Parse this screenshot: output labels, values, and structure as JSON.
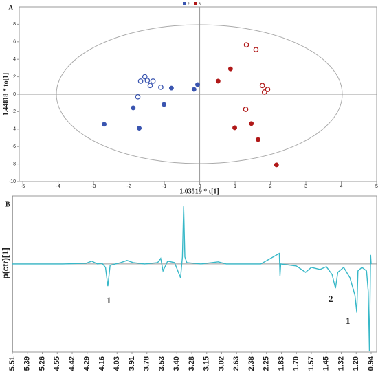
{
  "chart_data": [
    {
      "type": "scatter",
      "panel": "A",
      "xlabel": "1.03519 * t[1]",
      "ylabel": "1.44818 * to[1]",
      "xlim": [
        -5.1,
        5
      ],
      "ylim": [
        -10,
        10
      ],
      "xticks": [
        -5,
        -4,
        -3,
        -2,
        -1,
        0,
        1,
        2,
        3,
        4,
        5
      ],
      "yticks": [
        -10,
        -8,
        -6,
        -4,
        -2,
        0,
        2,
        4,
        6,
        8
      ],
      "series": [
        {
          "name": "2",
          "color": "#3a55b0",
          "x": [
            -2.7,
            -1.88,
            -1.71,
            -1.01,
            -0.8,
            -0.16,
            -0.06,
            -1.75,
            -1.67,
            -1.55,
            -1.48,
            -1.4,
            -1.32,
            -1.1
          ],
          "values": [
            -3.45,
            -1.57,
            -3.9,
            -1.18,
            0.7,
            0.55,
            1.1,
            -0.3,
            1.5,
            2.0,
            1.57,
            1.0,
            1.5,
            0.8
          ],
          "hollow": [
            false,
            false,
            false,
            false,
            false,
            false,
            false,
            true,
            true,
            true,
            true,
            true,
            true,
            true
          ]
        },
        {
          "name": "3",
          "color": "#b01818",
          "x": [
            0.52,
            0.87,
            0.99,
            1.46,
            1.65,
            2.17,
            1.32,
            1.59,
            1.77,
            1.83,
            1.92,
            1.3
          ],
          "values": [
            1.5,
            2.9,
            -3.85,
            -3.37,
            -5.2,
            -8.1,
            5.65,
            5.1,
            1.0,
            0.24,
            0.55,
            -1.73
          ],
          "hollow": [
            false,
            false,
            false,
            false,
            false,
            false,
            true,
            true,
            true,
            true,
            true,
            true
          ]
        }
      ]
    },
    {
      "type": "line",
      "panel": "B",
      "ylabel": "p(ctr)[1]",
      "ylim": [
        -1.27,
        0.98
      ],
      "xticks": [
        5.51,
        5.39,
        5.26,
        4.55,
        4.42,
        4.29,
        4.16,
        4.03,
        3.91,
        3.78,
        3.53,
        {
          "value": 3.4,
          "label": "3.40"
        },
        3.28,
        3.15,
        3.02,
        2.63,
        2.38,
        2.25,
        1.83,
        {
          "value": 1.7,
          "label": "1.70"
        },
        1.57,
        1.45,
        1.32,
        {
          "value": 1.2,
          "label": "1.20"
        },
        0.94
      ],
      "annotations": [
        "1",
        "2",
        "1"
      ],
      "series": [
        {
          "color": "#38b8c8",
          "x": [
            5.51,
            5.0,
            4.5,
            4.3,
            4.25,
            4.2,
            4.16,
            4.13,
            4.11,
            4.09,
            4.0,
            3.95,
            3.9,
            3.8,
            3.6,
            3.55,
            3.52,
            3.48,
            3.42,
            3.37,
            3.355,
            3.345,
            3.335,
            3.32,
            3.2,
            3.05,
            2.9,
            2.5,
            2.3,
            1.89,
            1.87,
            1.85,
            1.7,
            1.62,
            1.57,
            1.5,
            1.45,
            1.4,
            1.37,
            1.35,
            1.3,
            1.25,
            1.21,
            1.19,
            1.17,
            1.1,
            1.02,
            0.99,
            0.97,
            0.95,
            0.94
          ],
          "values": [
            0,
            0,
            0,
            0.01,
            0.04,
            0,
            0.01,
            -0.05,
            -0.32,
            -0.02,
            0.02,
            0.05,
            0.02,
            0,
            0.02,
            0.08,
            -0.1,
            0.04,
            0.02,
            -0.2,
            0.1,
            0.83,
            0.1,
            0.02,
            0,
            0.03,
            0,
            0,
            0,
            0.15,
            -0.17,
            0,
            -0.03,
            -0.12,
            -0.05,
            -0.08,
            -0.04,
            -0.15,
            -0.35,
            -0.12,
            -0.05,
            -0.2,
            -0.45,
            -0.7,
            -0.1,
            -0.05,
            -0.1,
            -0.4,
            -1.25,
            0.13,
            0
          ]
        }
      ]
    }
  ]
}
